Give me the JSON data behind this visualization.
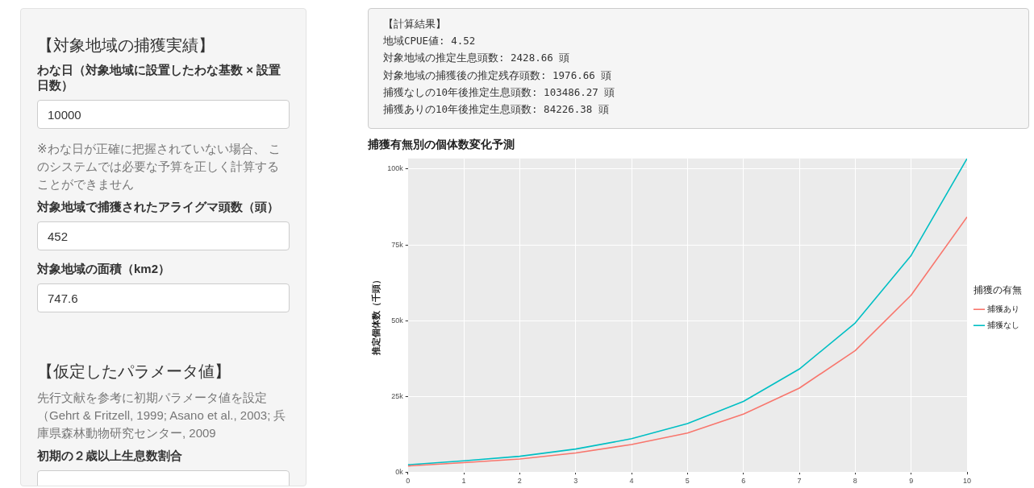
{
  "chart_data": [
    {
      "type": "other",
      "title": "【対象地域の捕獲実績】",
      "annotations": [
        "わな日（対象地域に設置したわな基数 × 設置日数）",
        "10000",
        "※わな日が正確に把握されていない場合、 このシステムでは必要な予算を正しく計算することができません",
        "対象地域で捕獲されたアライグマ頭数（頭）",
        "452",
        "対象地域の面積（km2）",
        "747.6",
        "【仮定したパラメータ値】",
        "先行文献を参考に初期パラメータ値を設定（Gehrt & Fritzell, 1999; Asano et al., 2003; 兵庫県森林動物研究センター, 2009",
        "初期の２歳以上生息数割合"
      ]
    },
    {
      "type": "other",
      "title": "【計算結果】",
      "annotations": [
        "地域CPUE値: 4.52",
        "対象地域の推定生息頭数: 2428.66 頭",
        "対象地域の捕獲後の推定残存頭数: 1976.66 頭",
        "捕獲なしの10年後推定生息頭数: 103486.27 頭",
        "捕獲ありの10年後推定生息頭数: 84226.38 頭"
      ]
    },
    {
      "type": "line",
      "title": "捕獲有無別の個体数変化予測",
      "ylabel": "推定個体数（千頭）",
      "legend_title": "捕獲の有無",
      "legend": "right",
      "grid": true,
      "x": [
        0,
        1,
        2,
        3,
        4,
        5,
        6,
        7,
        8,
        9,
        10
      ],
      "xlim": [
        0,
        10
      ],
      "xticks": [
        0,
        1,
        2,
        3,
        4,
        5,
        6,
        7,
        8,
        9,
        10
      ],
      "ylim": [
        0,
        103500
      ],
      "yticks": [
        {
          "value": 0,
          "label": "0k"
        },
        {
          "value": 25000,
          "label": "25k"
        },
        {
          "value": 50000,
          "label": "50k"
        },
        {
          "value": 75000,
          "label": "75k"
        },
        {
          "value": 100000,
          "label": "100k"
        }
      ],
      "series": [
        {
          "name": "捕獲あり",
          "color": "#f8766d",
          "values": [
            2000,
            3100,
            4300,
            6300,
            9100,
            12900,
            19100,
            27700,
            40100,
            58400,
            84200
          ]
        },
        {
          "name": "捕獲なし",
          "color": "#00bfc4",
          "values": [
            2400,
            3700,
            5200,
            7600,
            11000,
            16000,
            23300,
            34000,
            49200,
            71500,
            103500
          ]
        }
      ]
    }
  ]
}
